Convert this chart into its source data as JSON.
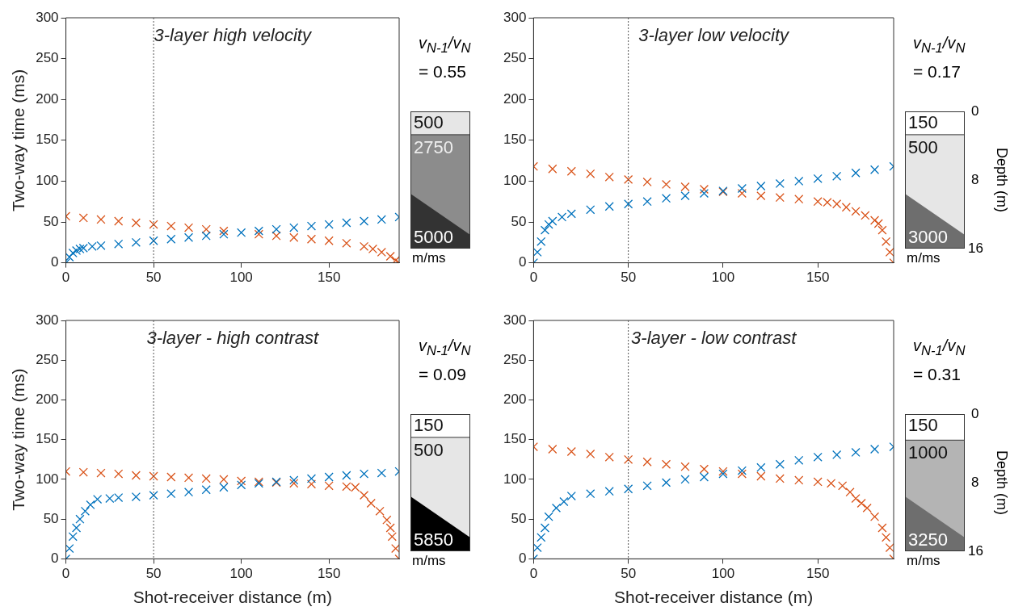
{
  "chart_data": [
    {
      "type": "scatter",
      "title": "3-layer high velocity",
      "ylabel": "Two-way time (ms)",
      "xlim": [
        0,
        190
      ],
      "xticks": [
        0,
        50,
        100,
        150
      ],
      "ylim": [
        0,
        300
      ],
      "yticks": [
        0,
        50,
        100,
        150,
        200,
        250,
        300
      ],
      "marker": "cross",
      "grid": false,
      "legend": false,
      "series": [
        {
          "color": "#0072bd",
          "x": [
            0,
            2,
            4,
            6,
            8,
            10,
            15,
            20,
            30,
            40,
            50,
            60,
            70,
            80,
            90,
            100,
            110,
            120,
            130,
            140,
            150,
            160,
            170,
            180,
            190
          ],
          "values": [
            0,
            7,
            12,
            15,
            17,
            18,
            20,
            21,
            23,
            25,
            27,
            29,
            31,
            33,
            35,
            37,
            39,
            41,
            43,
            45,
            47,
            49,
            51,
            53,
            56
          ]
        },
        {
          "color": "#d95319",
          "x": [
            0,
            10,
            20,
            30,
            40,
            50,
            60,
            70,
            80,
            90,
            100,
            110,
            120,
            130,
            140,
            150,
            160,
            170,
            175,
            180,
            185,
            188,
            190
          ],
          "values": [
            57,
            55,
            53,
            51,
            49,
            47,
            45,
            43,
            41,
            39,
            null,
            35,
            33,
            31,
            29,
            27,
            24,
            20,
            17,
            13,
            8,
            3,
            0
          ]
        }
      ],
      "ref_lines": [
        {
          "axis": "x",
          "value": 50,
          "color": "#555555",
          "line_style": "dotted"
        }
      ],
      "annotations": [
        "v$_{N-1}$/v$_{N}$",
        "= 0.55",
        "500",
        "2750",
        "5000",
        "m/ms"
      ]
    },
    {
      "type": "scatter",
      "title": "3-layer low velocity",
      "xlim": [
        0,
        190
      ],
      "xticks": [
        0,
        50,
        100,
        150
      ],
      "ylim": [
        0,
        300
      ],
      "yticks": [
        0,
        50,
        100,
        150,
        200,
        250,
        300
      ],
      "marker": "cross",
      "grid": false,
      "legend": false,
      "series": [
        {
          "color": "#0072bd",
          "x": [
            0,
            2,
            4,
            6,
            8,
            10,
            15,
            20,
            30,
            40,
            50,
            60,
            70,
            80,
            90,
            100,
            110,
            120,
            130,
            140,
            150,
            160,
            170,
            180,
            190
          ],
          "values": [
            0,
            13,
            26,
            40,
            47,
            51,
            56,
            60,
            65,
            69,
            72,
            75,
            79,
            82,
            85,
            88,
            91,
            94,
            97,
            100,
            103,
            106,
            110,
            114,
            118
          ]
        },
        {
          "color": "#d95319",
          "x": [
            0,
            10,
            20,
            30,
            40,
            50,
            60,
            70,
            80,
            90,
            100,
            110,
            120,
            130,
            140,
            150,
            155,
            160,
            165,
            170,
            175,
            180,
            182,
            184,
            186,
            188,
            190
          ],
          "values": [
            118,
            115,
            112,
            109,
            105,
            102,
            99,
            96,
            93,
            90,
            87,
            85,
            82,
            80,
            78,
            75,
            74,
            72,
            68,
            63,
            58,
            52,
            48,
            40,
            26,
            13,
            0
          ]
        }
      ],
      "ref_lines": [
        {
          "axis": "x",
          "value": 50,
          "color": "#555555",
          "line_style": "dotted"
        }
      ],
      "annotations": [
        "v$_{N-1}$/v$_{N}$",
        "= 0.17",
        "150",
        "500",
        "3000",
        "m/ms",
        "0",
        "8",
        "16",
        "Depth (m)"
      ]
    },
    {
      "type": "scatter",
      "title": "3-layer - high contrast",
      "xlabel": "Shot-receiver distance (m)",
      "ylabel": "Two-way time (ms)",
      "xlim": [
        0,
        190
      ],
      "xticks": [
        0,
        50,
        100,
        150
      ],
      "ylim": [
        0,
        300
      ],
      "yticks": [
        0,
        50,
        100,
        150,
        200,
        250,
        300
      ],
      "marker": "cross",
      "grid": false,
      "legend": false,
      "series": [
        {
          "color": "#0072bd",
          "x": [
            0,
            2,
            4,
            6,
            8,
            11,
            14,
            18,
            25,
            30,
            40,
            50,
            60,
            70,
            80,
            90,
            100,
            110,
            120,
            130,
            140,
            150,
            160,
            170,
            180,
            190
          ],
          "values": [
            0,
            13,
            28,
            39,
            50,
            60,
            68,
            75,
            76,
            77,
            78,
            80,
            82,
            84,
            87,
            90,
            93,
            95,
            97,
            99,
            101,
            103,
            105,
            107,
            108,
            110
          ]
        },
        {
          "color": "#d95319",
          "x": [
            0,
            10,
            20,
            30,
            40,
            50,
            60,
            70,
            80,
            90,
            100,
            110,
            120,
            130,
            140,
            150,
            160,
            165,
            170,
            174,
            179,
            183,
            185,
            186,
            188,
            190
          ],
          "values": [
            110,
            109,
            108,
            107,
            105,
            104,
            103,
            102,
            101,
            100,
            98,
            97,
            96,
            95,
            94,
            92,
            91,
            90,
            80,
            70,
            60,
            49,
            39,
            28,
            13,
            0
          ]
        }
      ],
      "ref_lines": [
        {
          "axis": "x",
          "value": 50,
          "color": "#555555",
          "line_style": "dotted"
        }
      ],
      "annotations": [
        "v$_{N-1}$/v$_{N}$",
        "= 0.09",
        "150",
        "500",
        "5850",
        "m/ms"
      ]
    },
    {
      "type": "scatter",
      "title": "3-layer - low contrast",
      "xlabel": "Shot-receiver distance (m)",
      "xlim": [
        0,
        190
      ],
      "xticks": [
        0,
        50,
        100,
        150
      ],
      "ylim": [
        0,
        300
      ],
      "yticks": [
        0,
        50,
        100,
        150,
        200,
        250,
        300
      ],
      "marker": "cross",
      "grid": false,
      "legend": false,
      "series": [
        {
          "color": "#0072bd",
          "x": [
            0,
            2,
            4,
            6,
            8,
            12,
            16,
            20,
            30,
            40,
            50,
            60,
            70,
            80,
            90,
            100,
            110,
            120,
            130,
            140,
            150,
            160,
            170,
            180,
            190
          ],
          "values": [
            0,
            14,
            27,
            39,
            53,
            64,
            72,
            79,
            82,
            85,
            88,
            92,
            96,
            100,
            103,
            107,
            111,
            115,
            119,
            124,
            128,
            131,
            134,
            138,
            141
          ]
        },
        {
          "color": "#d95319",
          "x": [
            0,
            10,
            20,
            30,
            40,
            50,
            60,
            70,
            80,
            90,
            100,
            110,
            120,
            130,
            140,
            150,
            157,
            163,
            167,
            170,
            173,
            176,
            180,
            184,
            186,
            188,
            190
          ],
          "values": [
            141,
            138,
            135,
            132,
            128,
            125,
            122,
            119,
            116,
            113,
            110,
            107,
            104,
            101,
            99,
            97,
            95,
            92,
            84,
            76,
            70,
            64,
            53,
            39,
            27,
            14,
            0
          ]
        }
      ],
      "ref_lines": [
        {
          "axis": "x",
          "value": 50,
          "color": "#555555",
          "line_style": "dotted"
        }
      ],
      "annotations": [
        "v$_{N-1}$/v$_{N}$",
        "= 0.31",
        "150",
        "1000",
        "3250",
        "m/ms",
        "0",
        "8",
        "16",
        "Depth (m)"
      ]
    }
  ]
}
